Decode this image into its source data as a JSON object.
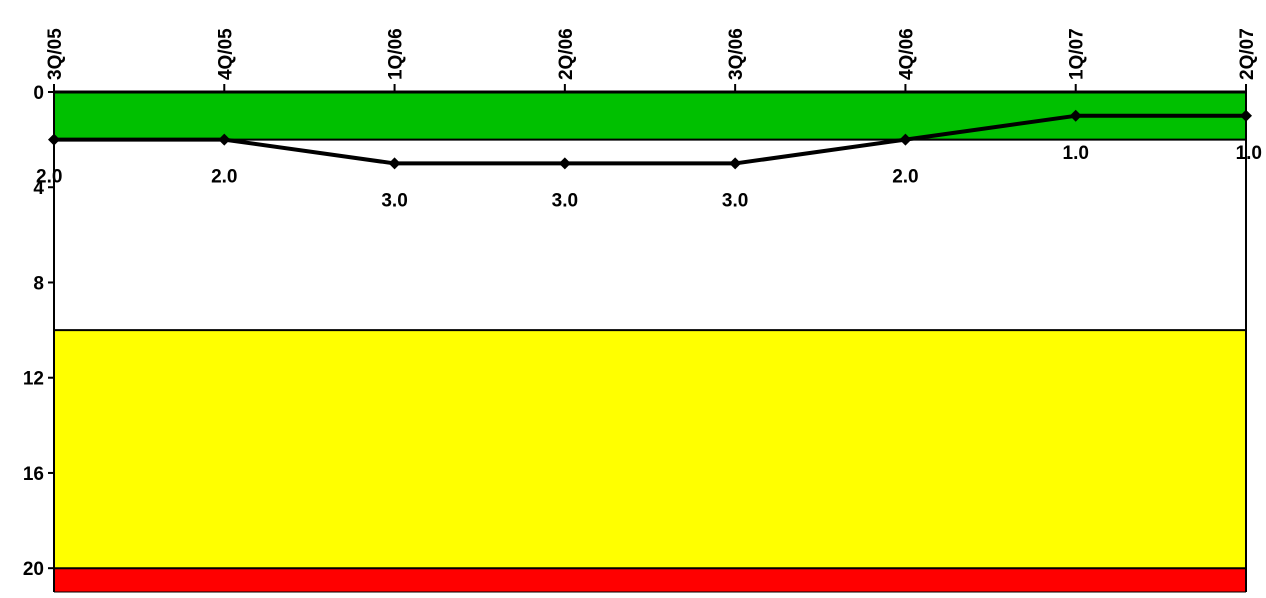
{
  "chart_data": {
    "type": "line",
    "title": "",
    "xlabel": "",
    "ylabel": "",
    "categories": [
      "3Q/05",
      "4Q/05",
      "1Q/06",
      "2Q/06",
      "3Q/06",
      "4Q/06",
      "1Q/07",
      "2Q/07"
    ],
    "series": [
      {
        "values": [
          2.0,
          2.0,
          3.0,
          3.0,
          3.0,
          2.0,
          1.0,
          1.0
        ],
        "data_labels": [
          "2.0",
          "2.0",
          "3.0",
          "3.0",
          "3.0",
          "2.0",
          "1.0",
          "1.0"
        ],
        "color": "#000000",
        "marker": "diamond"
      }
    ],
    "ylim": [
      0,
      21
    ],
    "y_reversed": true,
    "y_ticks": [
      0,
      4,
      8,
      12,
      16,
      20
    ],
    "y_tick_labels": [
      "0",
      "4",
      "8",
      "12",
      "16",
      "20"
    ],
    "x_axis_position": "top",
    "bands": [
      {
        "from": 0,
        "to": 2,
        "color": "#00c000"
      },
      {
        "from": 2,
        "to": 10,
        "color": "#ffffff"
      },
      {
        "from": 10,
        "to": 20,
        "color": "#ffff00"
      },
      {
        "from": 20,
        "to": 21,
        "color": "#ff0000"
      }
    ],
    "grid": false,
    "legend": "none"
  }
}
